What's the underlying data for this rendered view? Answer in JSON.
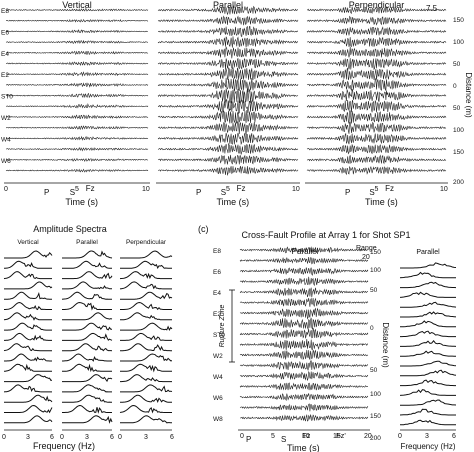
{
  "top": {
    "panels": [
      {
        "title": "Vertical",
        "amp": 2.2
      },
      {
        "title": "Parallel",
        "amp": 4.0
      },
      {
        "title": "Perpendicular",
        "amp": 4.2
      }
    ],
    "stations": [
      "E8",
      "E6",
      "E4",
      "E2",
      "ST0",
      "W2",
      "W4",
      "W6",
      "W8"
    ],
    "scale_label": "7.5",
    "distance_ticks": [
      "150",
      "100",
      "50",
      "0",
      "50",
      "100",
      "150",
      "200"
    ],
    "distance_axis": "Distance (m)",
    "time_ticks": [
      "0",
      "5",
      "10"
    ],
    "phase_labels": [
      "P",
      "S",
      "Fz"
    ],
    "time_axis": "Time (s)"
  },
  "spectra": {
    "title": "Amplitude Spectra",
    "columns": [
      "Vertical",
      "Parallel",
      "Perpendicular"
    ],
    "x_ticks": [
      "0",
      "3",
      "6"
    ],
    "x_axis": "Frequency (Hz)"
  },
  "profile": {
    "panel_label": "(c)",
    "title": "Cross-Fault Profile at Array 1 for Shot SP1",
    "component": "Parallel",
    "range_label": "Range",
    "range_value": "20",
    "stations": [
      "E8",
      "E6",
      "E4",
      "E2",
      "ST0",
      "W2",
      "W4",
      "W6",
      "W8"
    ],
    "zone_label": "Rupture Zone",
    "distance_ticks": [
      "150",
      "100",
      "50",
      "0",
      "50",
      "100",
      "150",
      "200"
    ],
    "distance_axis": "Distance (m)",
    "time_ticks": [
      "0",
      "5",
      "10",
      "15",
      "20"
    ],
    "phase_labels": [
      "P",
      "S",
      "Fz",
      "Fz'"
    ],
    "time_axis": "Time (s)",
    "spectrum_title": "Parallel",
    "spectrum_ticks": [
      "0",
      "3",
      "6"
    ],
    "spectrum_axis": "Frequency (Hz)"
  },
  "chart_data": [
    {
      "type": "line",
      "description": "Seismogram sections, 3 components, trace amplitude shown vs time",
      "x_range": [
        0,
        10
      ],
      "series": [
        {
          "name": "Vertical"
        },
        {
          "name": "Parallel"
        },
        {
          "name": "Perpendicular"
        }
      ]
    },
    {
      "type": "line",
      "title": "Amplitude Spectra",
      "x_range": [
        0,
        6
      ],
      "series": [
        {
          "name": "Vertical"
        },
        {
          "name": "Parallel"
        },
        {
          "name": "Perpendicular"
        }
      ]
    },
    {
      "type": "line",
      "title": "Cross-Fault Profile at Array 1 for Shot SP1",
      "x_range": [
        0,
        20
      ]
    }
  ]
}
